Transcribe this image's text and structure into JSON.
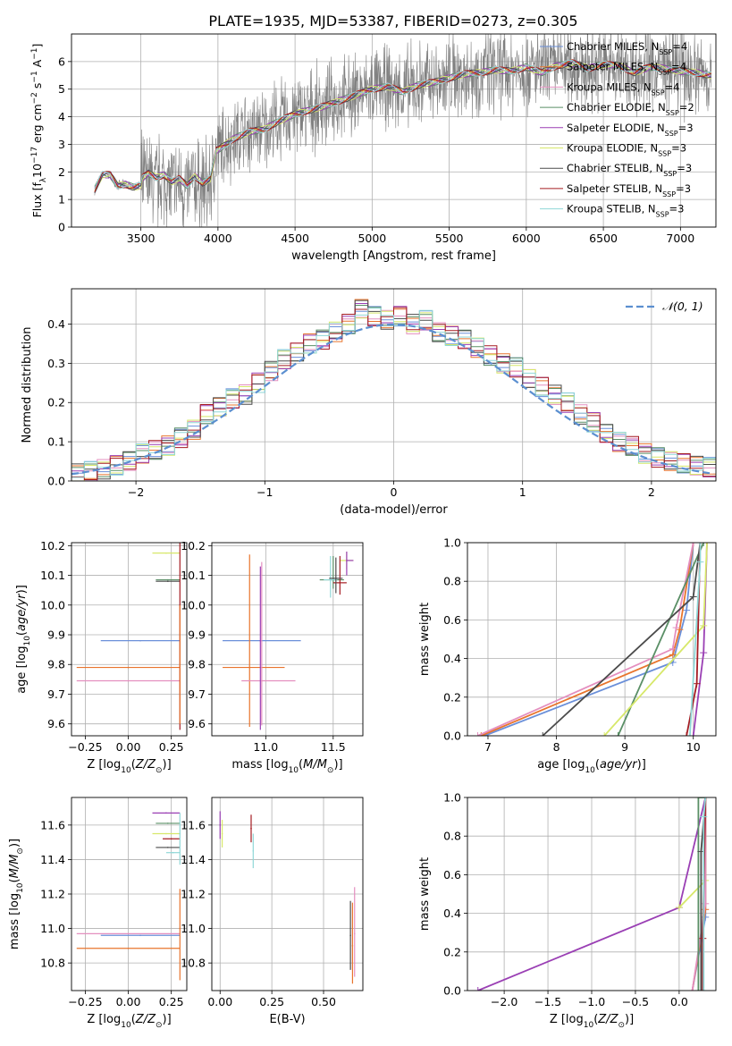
{
  "figure_title": "PLATE=1935, MJD=53387, FIBERID=0273, z=0.305",
  "model_colors": [
    "#6a8fd9",
    "#e8742d",
    "#e48fbf",
    "#5a8f66",
    "#9a3fb4",
    "#d7e86a",
    "#4b4b4b",
    "#a51c22",
    "#8fd7d7"
  ],
  "chart_data": [
    {
      "id": "spectrum",
      "type": "line",
      "xlabel": "wavelength [Angstrom, rest frame]",
      "ylabel": "Flux [f_λ 10^-17 erg cm^-2 s^-1 A^-1]",
      "xlim": [
        3050,
        7230
      ],
      "ylim": [
        0,
        7
      ],
      "xticks": [
        3500,
        4000,
        4500,
        5000,
        5500,
        6000,
        6500,
        7000
      ],
      "yticks": [
        0,
        1,
        2,
        3,
        4,
        5,
        6
      ],
      "legend_position": "top-right",
      "data_color": "#808080",
      "model_x": [
        3200,
        3250,
        3300,
        3350,
        3400,
        3450,
        3500,
        3550,
        3600,
        3650,
        3700,
        3750,
        3800,
        3850,
        3900,
        3950,
        4000,
        4100,
        4200,
        4300,
        4400,
        4500,
        4600,
        4700,
        4800,
        4900,
        5000,
        5100,
        5200,
        5300,
        5400,
        5500,
        5600,
        5700,
        5800,
        5900,
        6000,
        6100,
        6200,
        6300,
        6400,
        6500,
        6600,
        6700,
        6800,
        6900,
        7000,
        7100,
        7200
      ],
      "model_y": [
        1.35,
        1.9,
        1.9,
        1.5,
        1.55,
        1.45,
        1.5,
        1.7,
        1.55,
        1.65,
        1.4,
        1.5,
        1.25,
        1.6,
        1.35,
        1.5,
        2.8,
        3.2,
        3.45,
        3.55,
        3.85,
        4.1,
        4.25,
        4.4,
        4.6,
        4.8,
        5.0,
        5.1,
        4.9,
        5.15,
        5.25,
        5.4,
        5.55,
        5.6,
        5.7,
        5.65,
        5.8,
        5.6,
        5.85,
        5.95,
        5.75,
        5.9,
        5.85,
        5.6,
        5.8,
        5.75,
        5.65,
        5.6,
        5.5
      ],
      "series": [
        {
          "name": "Chabrier MILES, N_SSP=4"
        },
        {
          "name": "Salpeter MILES, N_SSP=4"
        },
        {
          "name": "Kroupa MILES, N_SSP=4"
        },
        {
          "name": "Chabrier ELODIE, N_SSP=2"
        },
        {
          "name": "Salpeter ELODIE, N_SSP=3"
        },
        {
          "name": "Kroupa ELODIE, N_SSP=3"
        },
        {
          "name": "Chabrier STELIB, N_SSP=3"
        },
        {
          "name": "Salpeter STELIB, N_SSP=3"
        },
        {
          "name": "Kroupa STELIB, N_SSP=3"
        }
      ]
    },
    {
      "id": "residuals",
      "type": "line",
      "xlabel": "(data-model)/error",
      "ylabel": "Normed distribution",
      "xlim": [
        -2.5,
        2.5
      ],
      "ylim": [
        0,
        0.49
      ],
      "xticks": [
        -2,
        -1,
        0,
        1,
        2
      ],
      "yticks": [
        0.0,
        0.1,
        0.2,
        0.3,
        0.4
      ],
      "legend_position": "top-right",
      "reference_curve": {
        "name": "N(0,1)",
        "sigma": 1.0,
        "color": "#5b8fd0"
      },
      "bin_centers": [
        -2.45,
        -2.35,
        -2.25,
        -2.15,
        -2.05,
        -1.95,
        -1.85,
        -1.75,
        -1.65,
        -1.55,
        -1.45,
        -1.35,
        -1.25,
        -1.15,
        -1.05,
        -0.95,
        -0.85,
        -0.75,
        -0.65,
        -0.55,
        -0.45,
        -0.35,
        -0.25,
        -0.15,
        -0.05,
        0.05,
        0.15,
        0.25,
        0.35,
        0.45,
        0.55,
        0.65,
        0.75,
        0.85,
        0.95,
        1.05,
        1.15,
        1.25,
        1.35,
        1.45,
        1.55,
        1.65,
        1.75,
        1.85,
        1.95,
        2.05,
        2.15,
        2.25,
        2.35,
        2.45
      ],
      "hist_values": [
        0.02,
        0.025,
        0.03,
        0.04,
        0.05,
        0.07,
        0.08,
        0.09,
        0.11,
        0.13,
        0.17,
        0.19,
        0.21,
        0.22,
        0.25,
        0.28,
        0.31,
        0.33,
        0.35,
        0.36,
        0.38,
        0.4,
        0.44,
        0.42,
        0.41,
        0.42,
        0.4,
        0.41,
        0.38,
        0.37,
        0.36,
        0.34,
        0.32,
        0.3,
        0.29,
        0.26,
        0.24,
        0.22,
        0.2,
        0.17,
        0.15,
        0.12,
        0.1,
        0.09,
        0.07,
        0.06,
        0.05,
        0.045,
        0.04,
        0.035
      ]
    },
    {
      "id": "z_vs_age",
      "type": "scatter",
      "xlabel": "Z [log10(Z/Z⊙)]",
      "ylabel": "age [log10(age/yr)]",
      "xlim": [
        -0.33,
        0.34
      ],
      "ylim": [
        9.56,
        10.21
      ],
      "xticks": [
        -0.25,
        0.0,
        0.25
      ],
      "yticks": [
        9.6,
        9.7,
        9.8,
        9.9,
        10.0,
        10.1,
        10.2
      ],
      "points": [
        {
          "x": 0.07,
          "y": 9.88,
          "xerr": [
            0.23,
            0.23
          ],
          "yerr": [
            0,
            0
          ],
          "c": 0
        },
        {
          "x": 0.0,
          "y": 9.79,
          "xerr": [
            0.3,
            0.3
          ],
          "yerr": [
            0,
            0
          ],
          "c": 1
        },
        {
          "x": 0.0,
          "y": 9.745,
          "xerr": [
            0.3,
            0.3
          ],
          "yerr": [
            0,
            0
          ],
          "c": 2
        },
        {
          "x": 0.23,
          "y": 10.085,
          "xerr": [
            0.07,
            0.07
          ],
          "yerr": [
            0,
            0
          ],
          "c": 3
        },
        {
          "x": 0.22,
          "y": 10.175,
          "xerr": [
            0.08,
            0.08
          ],
          "yerr": [
            0,
            0
          ],
          "c": 5
        },
        {
          "x": 0.23,
          "y": 10.08,
          "xerr": [
            0.07,
            0.07
          ],
          "yerr": [
            0,
            0
          ],
          "c": 6
        },
        {
          "x": 0.3,
          "y": 10.0,
          "xerr": [
            0,
            0
          ],
          "yerr": [
            0.42,
            0.22
          ],
          "c": 7
        },
        {
          "x": 0.3,
          "y": 9.8,
          "xerr": [
            0,
            0
          ],
          "yerr": [
            0.2,
            0.2
          ],
          "c": 1
        }
      ]
    },
    {
      "id": "mass_vs_age",
      "type": "scatter",
      "xlabel": "mass [log10(M/M⊙)]",
      "ylabel": "",
      "xlim": [
        10.6,
        11.72
      ],
      "ylim": [
        9.56,
        10.21
      ],
      "xticks": [
        11.0,
        11.5
      ],
      "yticks": [
        9.6,
        9.7,
        9.8,
        9.9,
        10.0,
        10.1,
        10.2
      ],
      "points": [
        {
          "x": 10.97,
          "y": 9.88,
          "xerr": [
            0.29,
            0.29
          ],
          "yerr": [
            0,
            0
          ],
          "c": 0
        },
        {
          "x": 10.88,
          "y": 9.79,
          "xerr": [
            0.2,
            0.26
          ],
          "yerr": [
            0.2,
            0.38
          ],
          "c": 1
        },
        {
          "x": 10.97,
          "y": 9.745,
          "xerr": [
            0.15,
            0.25
          ],
          "yerr": [
            0.15,
            0.4
          ],
          "c": 2
        },
        {
          "x": 10.96,
          "y": 9.88,
          "xerr": [
            0,
            0
          ],
          "yerr": [
            0.3,
            0.25
          ],
          "c": 4
        },
        {
          "x": 11.5,
          "y": 10.085,
          "xerr": [
            0.1,
            0.08
          ],
          "yerr": [
            0.03,
            0.08
          ],
          "c": 3
        },
        {
          "x": 11.6,
          "y": 10.15,
          "xerr": [
            0.05,
            0.05
          ],
          "yerr": [
            0.03,
            0.03
          ],
          "c": 5
        },
        {
          "x": 11.6,
          "y": 10.15,
          "xerr": [
            0,
            0.05
          ],
          "yerr": [
            0.05,
            0.03
          ],
          "c": 4
        },
        {
          "x": 11.48,
          "y": 10.085,
          "xerr": [
            0.05,
            0.05
          ],
          "yerr": [
            0.06,
            0.08
          ],
          "c": 8
        },
        {
          "x": 11.55,
          "y": 10.075,
          "xerr": [
            0.05,
            0.05
          ],
          "yerr": [
            0.04,
            0.09
          ],
          "c": 7
        },
        {
          "x": 11.52,
          "y": 10.09,
          "xerr": [
            0.05,
            0.05
          ],
          "yerr": [
            0.05,
            0.07
          ],
          "c": 6
        }
      ]
    },
    {
      "id": "age_cumulative_mass_weight",
      "type": "line",
      "xlabel": "age [log10(age/yr)]",
      "ylabel": "mass weight",
      "xlim": [
        6.7,
        10.33
      ],
      "ylim": [
        0,
        1
      ],
      "xticks": [
        7,
        8,
        9,
        10
      ],
      "yticks": [
        0.0,
        0.2,
        0.4,
        0.6,
        0.8,
        1.0
      ],
      "lines": [
        {
          "c": 0,
          "x": [
            6.95,
            9.7,
            9.9,
            10.0
          ],
          "y": [
            0.0,
            0.38,
            0.65,
            1.0
          ]
        },
        {
          "c": 1,
          "x": [
            6.9,
            9.7,
            9.8,
            10.0
          ],
          "y": [
            0.0,
            0.42,
            0.55,
            1.0
          ]
        },
        {
          "c": 2,
          "x": [
            6.85,
            9.7,
            9.75,
            10.0
          ],
          "y": [
            0.0,
            0.45,
            0.56,
            1.0
          ]
        },
        {
          "c": 3,
          "x": [
            8.9,
            10.15
          ],
          "y": [
            0.0,
            1.0
          ]
        },
        {
          "c": 4,
          "x": [
            10.0,
            10.15,
            10.2
          ],
          "y": [
            0.0,
            0.43,
            1.0
          ]
        },
        {
          "c": 5,
          "x": [
            8.7,
            10.15,
            10.2
          ],
          "y": [
            0.0,
            0.57,
            1.0
          ]
        },
        {
          "c": 6,
          "x": [
            7.8,
            10.0,
            10.1
          ],
          "y": [
            0.0,
            0.72,
            1.0
          ]
        },
        {
          "c": 7,
          "x": [
            9.9,
            10.05,
            10.1
          ],
          "y": [
            0.0,
            0.27,
            1.0
          ]
        },
        {
          "c": 8,
          "x": [
            9.95,
            10.1,
            10.1
          ],
          "y": [
            0.0,
            0.9,
            1.0
          ]
        }
      ]
    },
    {
      "id": "z_vs_mass",
      "type": "scatter",
      "xlabel": "Z [log10(Z/Z⊙)]",
      "ylabel": "mass [log10(M/M⊙)]",
      "xlim": [
        -0.33,
        0.34
      ],
      "ylim": [
        10.64,
        11.76
      ],
      "xticks": [
        -0.25,
        0.0,
        0.25
      ],
      "yticks": [
        10.8,
        11.0,
        11.2,
        11.4,
        11.6
      ],
      "points": [
        {
          "x": 0.07,
          "y": 10.96,
          "xerr": [
            0.23,
            0.23
          ],
          "yerr": [
            0,
            0
          ],
          "c": 0
        },
        {
          "x": 0.0,
          "y": 10.885,
          "xerr": [
            0.3,
            0.3
          ],
          "yerr": [
            0,
            0
          ],
          "c": 1
        },
        {
          "x": 0.0,
          "y": 10.97,
          "xerr": [
            0.3,
            0.3
          ],
          "yerr": [
            0,
            0
          ],
          "c": 2
        },
        {
          "x": 0.23,
          "y": 11.61,
          "xerr": [
            0.07,
            0.07
          ],
          "yerr": [
            0,
            0
          ],
          "c": 3
        },
        {
          "x": 0.22,
          "y": 11.67,
          "xerr": [
            0.08,
            0.08
          ],
          "yerr": [
            0,
            0
          ],
          "c": 4
        },
        {
          "x": 0.22,
          "y": 11.55,
          "xerr": [
            0.08,
            0.08
          ],
          "yerr": [
            0,
            0
          ],
          "c": 5
        },
        {
          "x": 0.23,
          "y": 11.47,
          "xerr": [
            0.07,
            0.07
          ],
          "yerr": [
            0,
            0
          ],
          "c": 6
        },
        {
          "x": 0.25,
          "y": 11.52,
          "xerr": [
            0.05,
            0.05
          ],
          "yerr": [
            0,
            0
          ],
          "c": 7
        },
        {
          "x": 0.26,
          "y": 11.44,
          "xerr": [
            0.04,
            0.04
          ],
          "yerr": [
            0,
            0
          ],
          "c": 8
        },
        {
          "x": 0.3,
          "y": 11.0,
          "xerr": [
            0,
            0
          ],
          "yerr": [
            0.3,
            0.23
          ],
          "c": 1
        },
        {
          "x": 0.3,
          "y": 11.55,
          "xerr": [
            0,
            0
          ],
          "yerr": [
            0.18,
            0.12
          ],
          "c": 8
        }
      ]
    },
    {
      "id": "ebv_vs_mass",
      "type": "scatter",
      "xlabel": "E(B-V)",
      "ylabel": "",
      "xlim": [
        -0.04,
        0.69
      ],
      "ylim": [
        10.64,
        11.76
      ],
      "xticks": [
        0.0,
        0.25,
        0.5
      ],
      "yticks": [
        10.8,
        11.0,
        11.2,
        11.4,
        11.6
      ],
      "points": [
        {
          "x": 0.0,
          "y": 11.6,
          "xerr": [
            0,
            0
          ],
          "yerr": [
            0.08,
            0.08
          ],
          "c": 4
        },
        {
          "x": 0.01,
          "y": 11.55,
          "xerr": [
            0,
            0
          ],
          "yerr": [
            0.08,
            0.08
          ],
          "c": 5
        },
        {
          "x": 0.15,
          "y": 11.58,
          "xerr": [
            0,
            0
          ],
          "yerr": [
            0.08,
            0.08
          ],
          "c": 7
        },
        {
          "x": 0.16,
          "y": 11.45,
          "xerr": [
            0,
            0
          ],
          "yerr": [
            0.1,
            0.1
          ],
          "c": 8
        },
        {
          "x": 0.64,
          "y": 10.9,
          "xerr": [
            0,
            0
          ],
          "yerr": [
            0.22,
            0.25
          ],
          "c": 1
        },
        {
          "x": 0.65,
          "y": 10.97,
          "xerr": [
            0,
            0
          ],
          "yerr": [
            0.25,
            0.27
          ],
          "c": 2
        },
        {
          "x": 0.63,
          "y": 10.96,
          "xerr": [
            0,
            0
          ],
          "yerr": [
            0.2,
            0.2
          ],
          "c": 6
        }
      ]
    },
    {
      "id": "z_cumulative_mass_weight",
      "type": "line",
      "xlabel": "Z [log10(Z/Z⊙)]",
      "ylabel": "mass weight",
      "xlim": [
        -2.42,
        0.42
      ],
      "ylim": [
        0,
        1
      ],
      "xticks": [
        -2.0,
        -1.5,
        -1.0,
        -0.5,
        0.0
      ],
      "yticks": [
        0.0,
        0.2,
        0.4,
        0.6,
        0.8,
        1.0
      ],
      "lines": [
        {
          "c": 4,
          "x": [
            -2.3,
            0.0,
            0.3
          ],
          "y": [
            0.0,
            0.43,
            1.0
          ]
        },
        {
          "c": 5,
          "x": [
            0.0,
            0.3,
            0.3
          ],
          "y": [
            0.43,
            0.57,
            1.0
          ]
        },
        {
          "c": 0,
          "x": [
            0.15,
            0.3,
            0.3
          ],
          "y": [
            0.0,
            0.38,
            1.0
          ]
        },
        {
          "c": 1,
          "x": [
            0.15,
            0.3,
            0.3
          ],
          "y": [
            0.0,
            0.42,
            1.0
          ]
        },
        {
          "c": 2,
          "x": [
            0.15,
            0.3,
            0.3
          ],
          "y": [
            0.0,
            0.45,
            1.0
          ]
        },
        {
          "c": 3,
          "x": [
            0.22,
            0.22,
            0.3
          ],
          "y": [
            0.0,
            1.0,
            1.0
          ]
        },
        {
          "c": 6,
          "x": [
            0.25,
            0.25,
            0.3
          ],
          "y": [
            0.0,
            0.72,
            1.0
          ]
        },
        {
          "c": 7,
          "x": [
            0.27,
            0.27,
            0.3
          ],
          "y": [
            0.0,
            0.27,
            1.0
          ]
        },
        {
          "c": 8,
          "x": [
            0.28,
            0.28,
            0.3
          ],
          "y": [
            0.0,
            0.9,
            1.0
          ]
        }
      ]
    }
  ]
}
